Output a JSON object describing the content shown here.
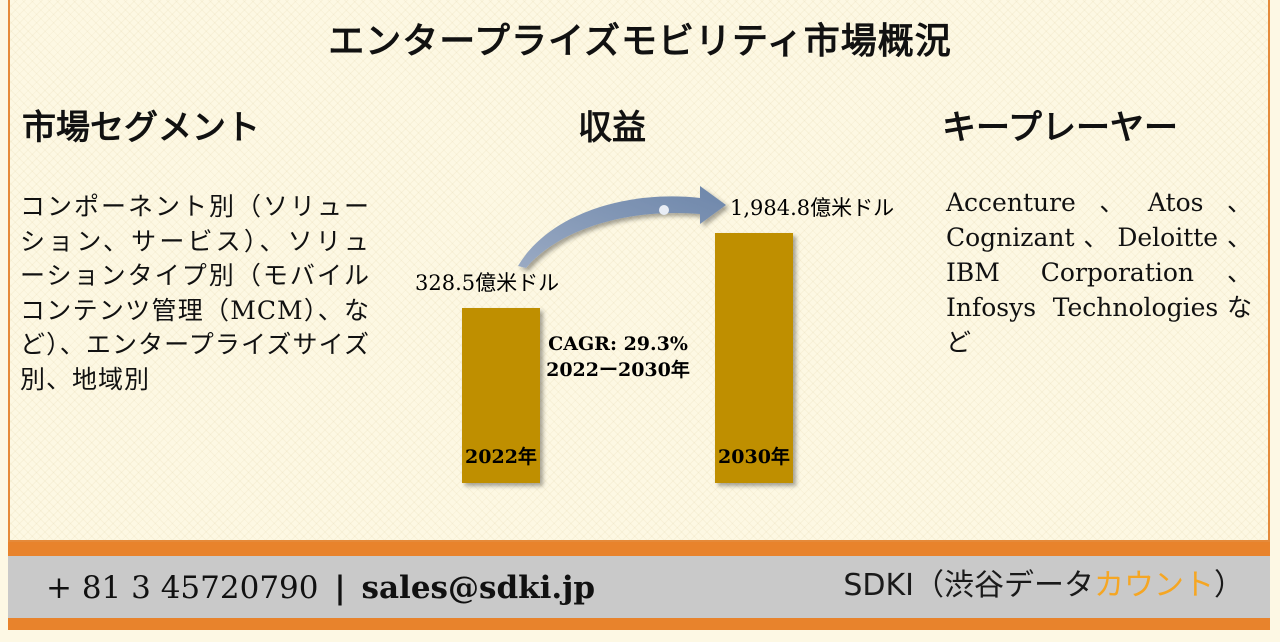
{
  "title": "エンタープライズモビリティ市場概況",
  "sections": {
    "segments": {
      "heading": "市場セグメント",
      "body": "コンポーネント別（ソリューション、サービス）、ソリューションタイプ別（モバイルコンテンツ管理（MCM）、など）、エンタープライズサイズ別、地域別"
    },
    "revenue": {
      "heading": "収益"
    },
    "key_players": {
      "heading": "キープレーヤー",
      "body": "Accenture、Atos、Cognizant、Deloitte、IBM Corporation、Infosys Technologiesなど"
    }
  },
  "chart_data": {
    "type": "bar",
    "categories": [
      "2022年",
      "2030年"
    ],
    "values": [
      328.5,
      1984.8
    ],
    "value_labels": [
      "328.5億米ドル",
      "1,984.8億米ドル"
    ],
    "unit": "億米ドル",
    "annotation": {
      "cagr": "CAGR: 29.3%",
      "period": "2022ー2030年"
    },
    "colors": {
      "bar": "#bf8f00",
      "arrow": "#7f95b5"
    }
  },
  "footer": {
    "phone": "+ 81 3 45720790",
    "separator": "|",
    "email": "sales@sdki.jp",
    "brand_prefix": "SDKI（渋谷データ",
    "brand_accent": "カウント",
    "brand_suffix": "）"
  }
}
